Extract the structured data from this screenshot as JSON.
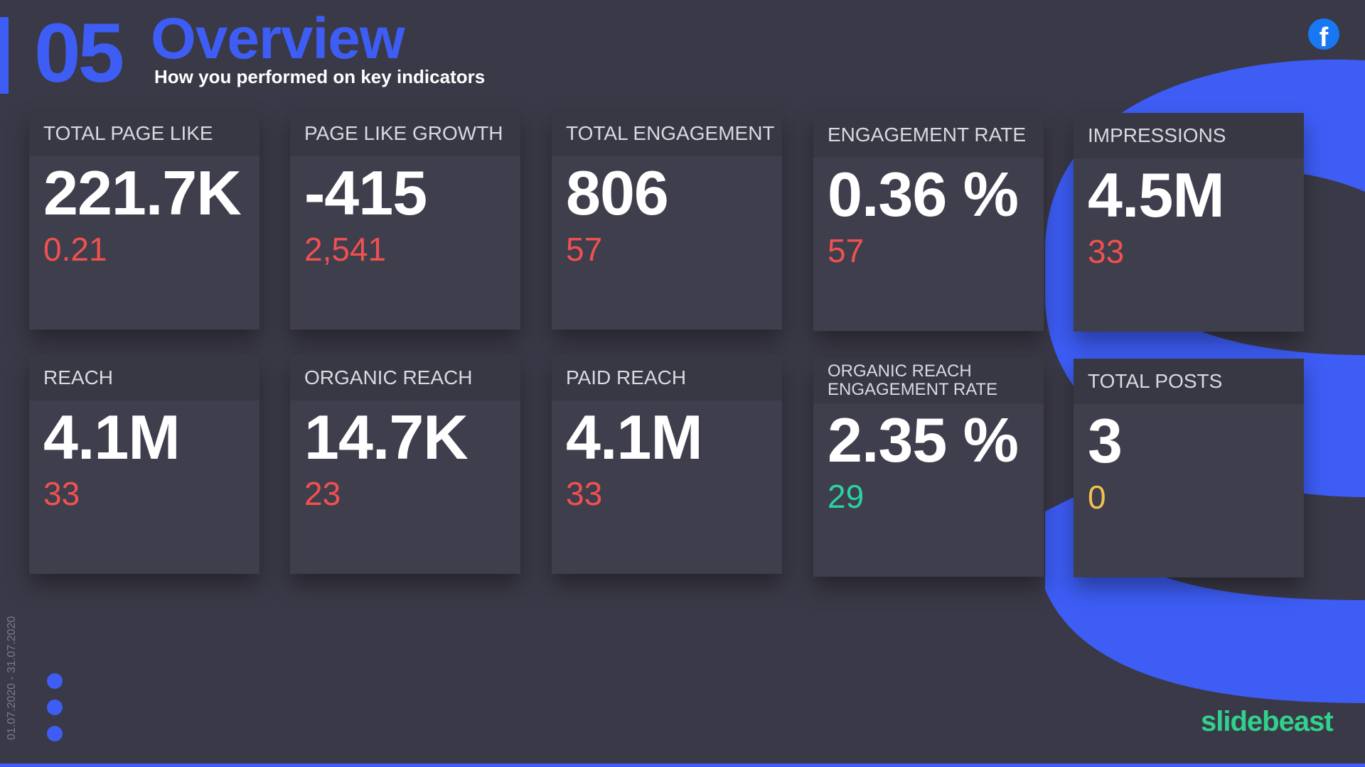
{
  "header": {
    "section_number": "05",
    "title": "Overview",
    "subtitle": "How you performed on key indicators"
  },
  "social_icon": "facebook-icon",
  "colors": {
    "background": "#3a3947",
    "accent": "#3d5df5",
    "negative": "#f0514f",
    "positive": "#2ad3a2",
    "neutral": "#f2c14e",
    "brand_logo": "#2fd18c"
  },
  "metrics": [
    {
      "label": "TOTAL PAGE LIKE",
      "value": "221.7K",
      "change": "0.21",
      "trend": "negative"
    },
    {
      "label": "PAGE LIKE GROWTH",
      "value": "-415",
      "change": "2,541",
      "trend": "negative"
    },
    {
      "label": "TOTAL ENGAGEMENT",
      "value": "806",
      "change": "57",
      "trend": "negative"
    },
    {
      "label": "ENGAGEMENT RATE",
      "value": "0.36 %",
      "change": "57",
      "trend": "negative"
    },
    {
      "label": "IMPRESSIONS",
      "value": "4.5M",
      "change": "33",
      "trend": "negative"
    },
    {
      "label": "REACH",
      "value": "4.1M",
      "change": "33",
      "trend": "negative"
    },
    {
      "label": "ORGANIC REACH",
      "value": "14.7K",
      "change": "23",
      "trend": "negative"
    },
    {
      "label": "PAID REACH",
      "value": "4.1M",
      "change": "33",
      "trend": "negative"
    },
    {
      "label": "ORGANIC REACH ENGAGEMENT RATE",
      "value": "2.35 %",
      "change": "29",
      "trend": "positive"
    },
    {
      "label": "TOTAL POSTS",
      "value": "3",
      "change": "0",
      "trend": "neutral"
    }
  ],
  "date_range": "01.07.2020 - 31.07.2020",
  "brand": "slidebeast"
}
